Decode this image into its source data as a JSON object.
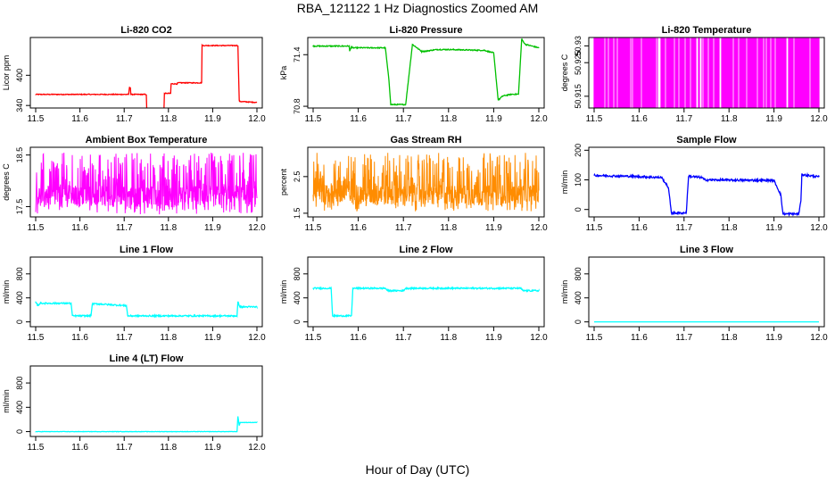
{
  "figure": {
    "title": "RBA_121122  1 Hz Diagnostics Zoomed AM",
    "xlabel": "Hour of Day (UTC)"
  },
  "chart_data": [
    {
      "type": "line",
      "title": "Li-820 CO2",
      "ylabel": "Licor ppm",
      "color": "#ff0000",
      "xlim": [
        11.5,
        12.0
      ],
      "ylim": [
        335,
        475
      ],
      "xticks": [
        11.5,
        11.6,
        11.7,
        11.8,
        11.9,
        12.0
      ],
      "yticks": [
        340,
        400
      ],
      "series": [
        {
          "style": "trace",
          "noise": 0.8,
          "x": [
            11.5,
            11.71,
            11.712,
            11.714,
            11.715,
            11.75,
            11.751,
            11.79,
            11.791,
            11.805,
            11.806,
            11.82,
            11.821,
            11.875,
            11.876,
            11.955,
            11.957,
            11.96,
            11.961,
            12.0
          ],
          "y": [
            362,
            362,
            376,
            376,
            362,
            362,
            333,
            333,
            364,
            364,
            383,
            383,
            385,
            385,
            459,
            459,
            459,
            350,
            348,
            346
          ]
        }
      ]
    },
    {
      "type": "line",
      "title": "Li-820 Pressure",
      "ylabel": "kPa",
      "color": "#00c000",
      "xlim": [
        11.5,
        12.0
      ],
      "ylim": [
        70.78,
        71.6
      ],
      "xticks": [
        11.5,
        11.6,
        11.7,
        11.8,
        11.9,
        12.0
      ],
      "yticks": [
        70.8,
        71.4
      ],
      "series": [
        {
          "style": "trace",
          "noise": 0.006,
          "x": [
            11.5,
            11.58,
            11.581,
            11.585,
            11.587,
            11.66,
            11.668,
            11.672,
            11.69,
            11.705,
            11.72,
            11.74,
            11.75,
            11.76,
            11.775,
            11.8,
            11.88,
            11.9,
            11.91,
            11.92,
            11.94,
            11.955,
            11.962,
            11.97,
            12.0
          ],
          "y": [
            71.5,
            71.5,
            71.44,
            71.5,
            71.48,
            71.48,
            71.1,
            70.82,
            70.82,
            70.82,
            71.52,
            71.44,
            71.44,
            71.45,
            71.46,
            71.46,
            71.45,
            71.42,
            70.87,
            70.92,
            70.94,
            70.94,
            71.58,
            71.52,
            71.48
          ]
        }
      ]
    },
    {
      "type": "line",
      "title": "Li-820 Temperature",
      "ylabel": "degrees C",
      "color": "#ff00ff",
      "xlim": [
        11.5,
        12.0
      ],
      "ylim": [
        50.9115,
        50.9325
      ],
      "xticks": [
        11.5,
        11.6,
        11.7,
        11.8,
        11.9,
        12.0
      ],
      "yticks": [
        50.915,
        50.925,
        50.93
      ],
      "series": [
        {
          "style": "flicker",
          "low": 50.9115,
          "high": 50.9325
        }
      ]
    },
    {
      "type": "line",
      "title": "Ambient Box Temperature",
      "ylabel": "degrees C",
      "color": "#ff00ff",
      "xlim": [
        11.5,
        12.0
      ],
      "ylim": [
        17.3,
        18.65
      ],
      "xticks": [
        11.5,
        11.6,
        11.7,
        11.8,
        11.9,
        12.0
      ],
      "yticks": [
        17.5,
        18.5
      ],
      "series": [
        {
          "style": "noise",
          "low": 17.35,
          "high": 18.55,
          "center": 17.7
        }
      ]
    },
    {
      "type": "line",
      "title": "Gas Stream RH",
      "ylabel": "percent",
      "color": "#ff8c00",
      "xlim": [
        11.5,
        12.0
      ],
      "ylim": [
        1.4,
        3.3
      ],
      "xticks": [
        11.5,
        11.6,
        11.7,
        11.8,
        11.9,
        12.0
      ],
      "yticks": [
        1.5,
        2.5
      ],
      "series": [
        {
          "style": "noise",
          "low": 1.55,
          "high": 3.15,
          "center": 2.0
        }
      ]
    },
    {
      "type": "line",
      "title": "Sample Flow",
      "ylabel": "ml/min",
      "color": "#0000ff",
      "xlim": [
        11.5,
        12.0
      ],
      "ylim": [
        -25,
        210
      ],
      "xticks": [
        11.5,
        11.6,
        11.7,
        11.8,
        11.9,
        12.0
      ],
      "yticks": [
        0,
        100,
        200
      ],
      "series": [
        {
          "style": "trace",
          "noise": 3.5,
          "x": [
            11.5,
            11.58,
            11.65,
            11.665,
            11.672,
            11.7,
            11.705,
            11.71,
            11.74,
            11.745,
            11.9,
            11.915,
            11.92,
            11.955,
            11.96,
            11.962,
            12.0
          ],
          "y": [
            115,
            112,
            108,
            75,
            -12,
            -12,
            -10,
            112,
            108,
            100,
            98,
            50,
            -15,
            -15,
            30,
            118,
            110
          ]
        }
      ]
    },
    {
      "type": "line",
      "title": "Line 1 Flow",
      "ylabel": "ml/min",
      "color": "#00ffff",
      "xlim": [
        11.5,
        12.0
      ],
      "ylim": [
        -80,
        1080
      ],
      "xticks": [
        11.5,
        11.6,
        11.7,
        11.8,
        11.9,
        12.0
      ],
      "yticks": [
        0,
        400,
        800
      ],
      "series": [
        {
          "style": "trace",
          "noise": 12,
          "x": [
            11.5,
            11.505,
            11.51,
            11.58,
            11.583,
            11.625,
            11.628,
            11.64,
            11.705,
            11.708,
            11.955,
            11.957,
            11.962,
            12.0
          ],
          "y": [
            330,
            270,
            310,
            310,
            100,
            100,
            300,
            300,
            270,
            100,
            100,
            330,
            250,
            250
          ]
        }
      ]
    },
    {
      "type": "line",
      "title": "Line 2 Flow",
      "ylabel": "ml/min",
      "color": "#00ffff",
      "xlim": [
        11.5,
        12.0
      ],
      "ylim": [
        -80,
        1080
      ],
      "xticks": [
        11.5,
        11.6,
        11.7,
        11.8,
        11.9,
        12.0
      ],
      "yticks": [
        0,
        400,
        800
      ],
      "series": [
        {
          "style": "trace",
          "noise": 12,
          "x": [
            11.5,
            11.54,
            11.543,
            11.585,
            11.588,
            11.66,
            11.665,
            11.7,
            11.705,
            11.96,
            11.965,
            12.0
          ],
          "y": [
            560,
            560,
            100,
            100,
            560,
            560,
            520,
            520,
            560,
            560,
            520,
            520
          ]
        }
      ]
    },
    {
      "type": "line",
      "title": "Line 3 Flow",
      "ylabel": "ml/min",
      "color": "#00ffff",
      "xlim": [
        11.5,
        12.0
      ],
      "ylim": [
        -80,
        1080
      ],
      "xticks": [
        11.5,
        11.6,
        11.7,
        11.8,
        11.9,
        12.0
      ],
      "yticks": [
        0,
        400,
        800
      ],
      "series": [
        {
          "style": "trace",
          "noise": 0,
          "x": [
            11.5,
            12.0
          ],
          "y": [
            0,
            0
          ]
        }
      ]
    },
    {
      "type": "line",
      "title": "Line 4 (LT) Flow",
      "ylabel": "ml/min",
      "color": "#00ffff",
      "xlim": [
        11.5,
        12.0
      ],
      "ylim": [
        -80,
        1080
      ],
      "xticks": [
        11.5,
        11.6,
        11.7,
        11.8,
        11.9,
        12.0
      ],
      "yticks": [
        0,
        400,
        800
      ],
      "series": [
        {
          "style": "trace",
          "noise": 3,
          "x": [
            11.5,
            11.955,
            11.957,
            11.96,
            11.962,
            12.0
          ],
          "y": [
            0,
            0,
            250,
            100,
            150,
            150
          ]
        }
      ]
    }
  ]
}
